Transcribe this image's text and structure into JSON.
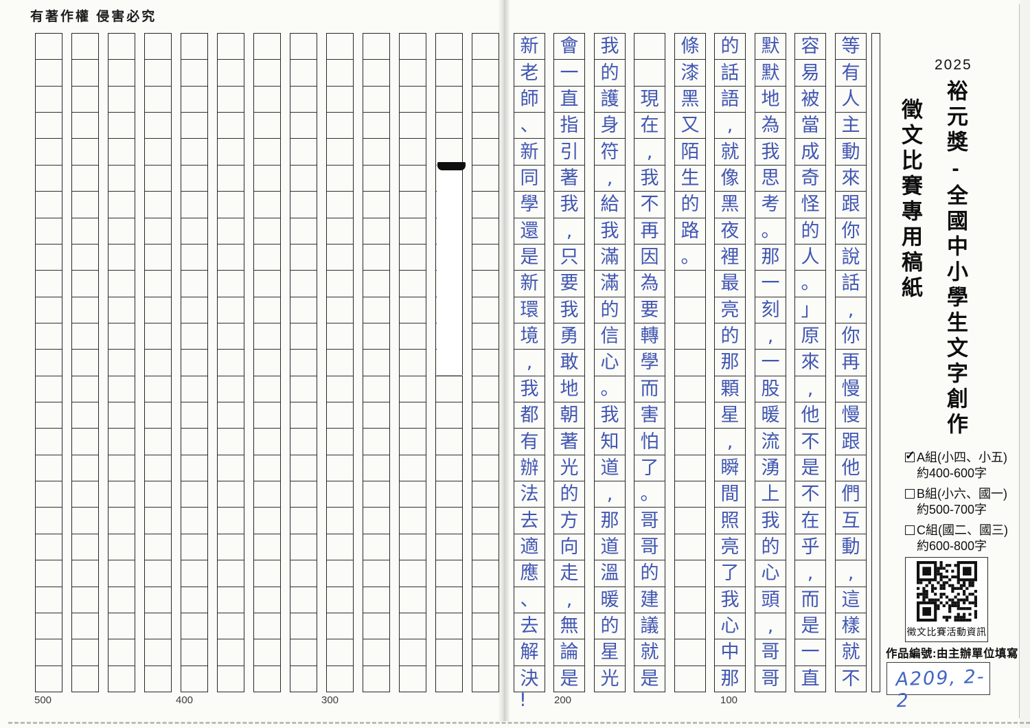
{
  "page": {
    "copyright_notice": "有著作權 侵害必究",
    "bottom_char_markers": [
      "500",
      "400",
      "300",
      "200",
      "100"
    ]
  },
  "sidebar": {
    "year": "2025",
    "title_main": "裕元獎-全國中小學生文字創作",
    "title_sub": "徵文比賽專用稿紙",
    "groups": [
      {
        "label": "A組(小四、小五)",
        "word_range": "約400-600字",
        "checked": true
      },
      {
        "label": "B組(小六、國一)",
        "word_range": "約500-700字",
        "checked": false
      },
      {
        "label": "C組(國二、國三)",
        "word_range": "約600-800字",
        "checked": false
      }
    ],
    "qr_caption": "徵文比賽活動資訊",
    "work_id_label": "作品編號:由主辦單位填寫",
    "work_id_value": "A209, 2-2"
  },
  "manuscript": {
    "rows_per_column": 25,
    "ink_color": "#4156b2",
    "columns_right_to_left": [
      "等有人主動來跟你說話,你再慢慢跟他們互動,這樣就不",
      "容易被當成奇怪的人。」原來,他不是不在乎,而是一直",
      "默默地為我思考。那一刻,一股暖流湧上我的心頭,哥哥",
      "的話語,就像黑夜裡最亮的那顆星,瞬間照亮了我心中那",
      "條漆黑又陌生的路。",
      "　　現在,我不再因為要轉學而害怕了。哥哥的建議就是",
      "我的護身符,給我滿滿的信心。我知道,那道溫暖的星光",
      "會一直指引著我,只要我勇敢地朝著光的方向走,無論是",
      "新老師、新同學還是新環境,我都有辦法去適應、去解決"
    ],
    "overflow_mark": "!",
    "empty_columns_left_page": 13
  }
}
